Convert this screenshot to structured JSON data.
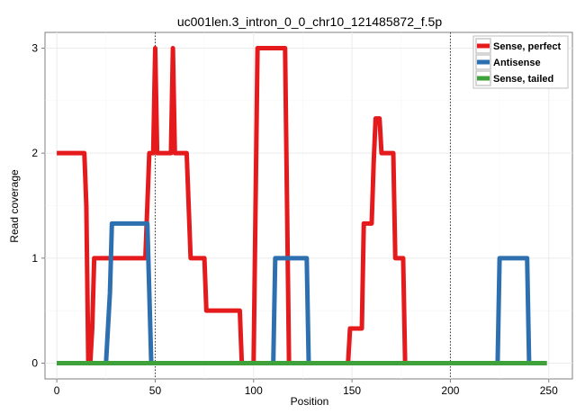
{
  "chart_data": {
    "type": "line",
    "title": "uc001len.3_intron_0_0_chr10_121485872_f.5p",
    "xlabel": "Position",
    "ylabel": "Read coverage",
    "xlim": [
      -6,
      262
    ],
    "ylim": [
      -0.15,
      3.15
    ],
    "xticks": [
      0,
      50,
      100,
      150,
      200,
      250
    ],
    "yticks": [
      0,
      1,
      2,
      3
    ],
    "vlines": [
      50,
      200
    ],
    "grid": true,
    "legend_position": "top-right",
    "series": [
      {
        "name": "Sense, perfect",
        "color": "#E41A1C",
        "points": [
          [
            0,
            2
          ],
          [
            14,
            2
          ],
          [
            15,
            1.5
          ],
          [
            16,
            0
          ],
          [
            17,
            0
          ],
          [
            18,
            0.33
          ],
          [
            19,
            1
          ],
          [
            45,
            1
          ],
          [
            46,
            1.5
          ],
          [
            47,
            2
          ],
          [
            49,
            2
          ],
          [
            50,
            3
          ],
          [
            51,
            2
          ],
          [
            54,
            2
          ],
          [
            58,
            2
          ],
          [
            59,
            3
          ],
          [
            60,
            2
          ],
          [
            66,
            2
          ],
          [
            67,
            1.5
          ],
          [
            68,
            1
          ],
          [
            75,
            1
          ],
          [
            76,
            0.5
          ],
          [
            84,
            0.5
          ],
          [
            93,
            0.5
          ],
          [
            94,
            0
          ],
          [
            100,
            0
          ],
          [
            101,
            1.5
          ],
          [
            102,
            3
          ],
          [
            116,
            3
          ],
          [
            117,
            1.5
          ],
          [
            118,
            0
          ],
          [
            148,
            0
          ],
          [
            149,
            0.33
          ],
          [
            155,
            0.33
          ],
          [
            156,
            1.33
          ],
          [
            160,
            1.33
          ],
          [
            161,
            1.9
          ],
          [
            162,
            2.33
          ],
          [
            164,
            2.33
          ],
          [
            165,
            2
          ],
          [
            171,
            2
          ],
          [
            172,
            1
          ],
          [
            176,
            1
          ],
          [
            177,
            0
          ],
          [
            249,
            0
          ]
        ]
      },
      {
        "name": "Antisense",
        "color": "#2E6FB0",
        "points": [
          [
            0,
            0
          ],
          [
            25,
            0
          ],
          [
            27,
            0.67
          ],
          [
            28,
            1.33
          ],
          [
            46,
            1.33
          ],
          [
            47,
            0.67
          ],
          [
            48,
            0
          ],
          [
            110,
            0
          ],
          [
            111,
            1
          ],
          [
            127,
            1
          ],
          [
            128,
            0
          ],
          [
            224,
            0
          ],
          [
            225,
            1
          ],
          [
            239,
            1
          ],
          [
            240,
            0
          ],
          [
            249,
            0
          ]
        ]
      },
      {
        "name": "Sense, tailed",
        "color": "#3FA13A",
        "points": [
          [
            0,
            0
          ],
          [
            249,
            0
          ]
        ]
      }
    ]
  }
}
